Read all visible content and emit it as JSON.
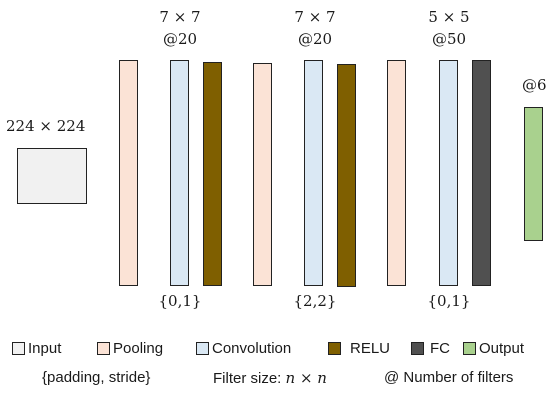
{
  "input": {
    "size_label": "224 × 224"
  },
  "blocks": [
    {
      "kernel": "7 × 7",
      "filters": "@20",
      "params": "{0,1}"
    },
    {
      "kernel": "7 × 7",
      "filters": "@20",
      "params": "{2,2}"
    },
    {
      "kernel": "5 × 5",
      "filters": "@50",
      "params": "{0,1}"
    }
  ],
  "output": {
    "filters": "@6"
  },
  "legend": [
    {
      "label": "Input",
      "color": "#f1f1f1"
    },
    {
      "label": "Pooling",
      "color": "#fbe3d6"
    },
    {
      "label": "Convolution",
      "color": "#dae8f4"
    },
    {
      "label": "RELU",
      "color": "#7f5f00"
    },
    {
      "label": "FC",
      "color": "#505050"
    },
    {
      "label": "Output",
      "color": "#a9d18e"
    }
  ],
  "notes": {
    "params_key": "{padding, stride}",
    "filter_size_label": "Filter size: ",
    "filter_size_expr": "n × n",
    "filters_key": "@ Number of filters"
  }
}
